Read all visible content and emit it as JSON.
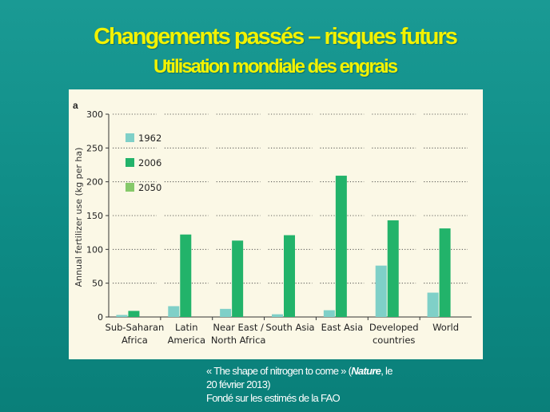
{
  "title": "Changements passés – risques futurs",
  "subtitle": "Utilisation mondiale des engrais",
  "caption": {
    "line1_pre": "« The shape of nitrogen to come » (",
    "line1_journal": "Nature",
    "line1_post": ", le",
    "line2": "20 février 2013)",
    "line3": "Fondé sur les estimés de la FAO"
  },
  "chart_data": {
    "type": "bar",
    "panel_label": "a",
    "ylabel": "Annual fertilizer use (kg per ha)",
    "ylim": [
      0,
      300
    ],
    "yticks": [
      "0",
      "50",
      "100",
      "150",
      "200",
      "250",
      "300"
    ],
    "categories": [
      [
        "Sub-Saharan",
        "Africa"
      ],
      [
        "Latin",
        "America"
      ],
      [
        "Near East /",
        "North Africa"
      ],
      [
        "South Asia"
      ],
      [
        "East Asia"
      ],
      [
        "Developed",
        "countries"
      ],
      [
        "World"
      ]
    ],
    "series": [
      {
        "name": "1962",
        "color": "#7fd0c8",
        "values": [
          3,
          16,
          12,
          4,
          10,
          76,
          36
        ]
      },
      {
        "name": "2006",
        "color": "#22b36a",
        "values": [
          9,
          122,
          113,
          121,
          209,
          143,
          131
        ]
      },
      {
        "name": "2050",
        "color": "#86c96a",
        "values": [
          0,
          0,
          0,
          0,
          0,
          0,
          0
        ]
      }
    ],
    "legend_position": "top-left",
    "grid": "dotted horizontal"
  }
}
